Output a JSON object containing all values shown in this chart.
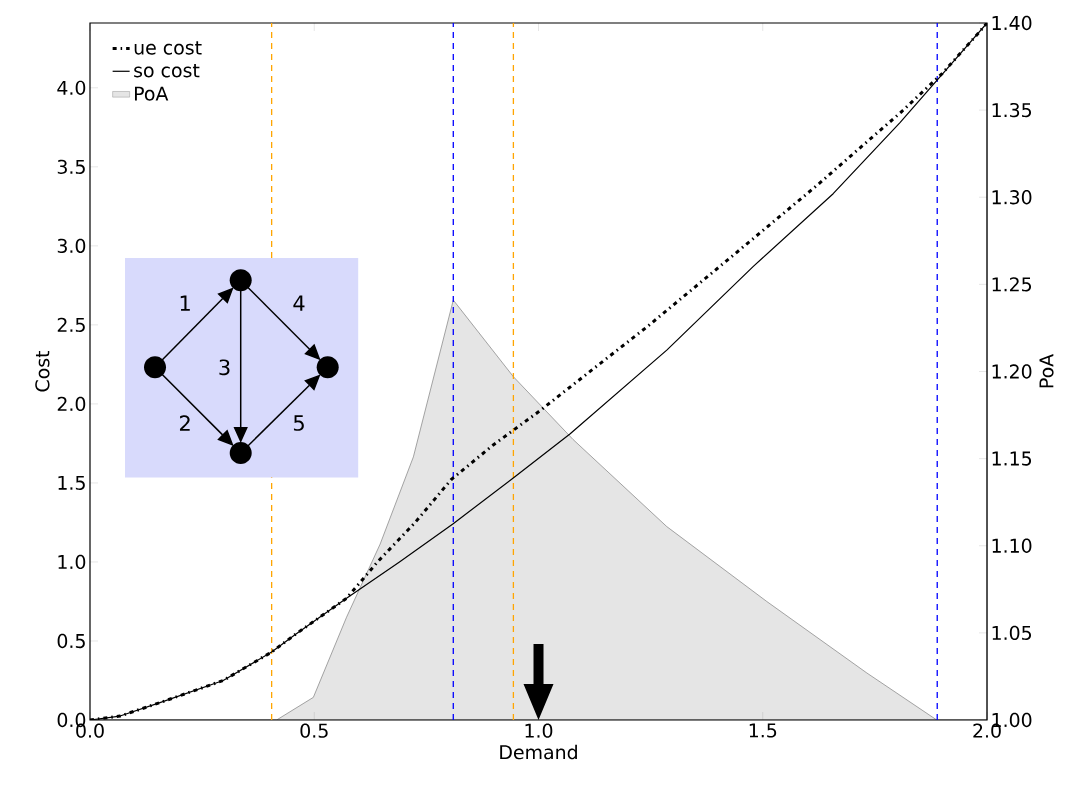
{
  "chart_data": {
    "type": "line",
    "xlabel": "Demand",
    "ylabel": "Cost",
    "y2label": "PoA",
    "xlim": [
      0,
      2
    ],
    "xticks": [
      {
        "value": 0,
        "label": "0.0"
      },
      {
        "value": 0.5,
        "label": "0.5"
      },
      {
        "value": 1,
        "label": "1.0"
      },
      {
        "value": 1.5,
        "label": "1.5"
      },
      {
        "value": 2,
        "label": "2.0"
      }
    ],
    "ylim": [
      0,
      4.41
    ],
    "yticks": [
      {
        "value": 0,
        "label": "0.0"
      },
      {
        "value": 0.5,
        "label": "0.5"
      },
      {
        "value": 1,
        "label": "1.0"
      },
      {
        "value": 1.5,
        "label": "1.5"
      },
      {
        "value": 2,
        "label": "2.0"
      },
      {
        "value": 2.5,
        "label": "2.5"
      },
      {
        "value": 3,
        "label": "3.0"
      },
      {
        "value": 3.5,
        "label": "3.5"
      },
      {
        "value": 4,
        "label": "4.0"
      }
    ],
    "y2lim": [
      1,
      1.4
    ],
    "y2ticks": [
      {
        "value": 1,
        "label": "1.00"
      },
      {
        "value": 1.05,
        "label": "1.05"
      },
      {
        "value": 1.1,
        "label": "1.10"
      },
      {
        "value": 1.15,
        "label": "1.15"
      },
      {
        "value": 1.2,
        "label": "1.20"
      },
      {
        "value": 1.25,
        "label": "1.25"
      },
      {
        "value": 1.3,
        "label": "1.30"
      },
      {
        "value": 1.35,
        "label": "1.35"
      },
      {
        "value": 1.4,
        "label": "1.40"
      }
    ],
    "series": [
      {
        "name": "ue cost",
        "line_style": "dashdot",
        "color": "#000000",
        "x": [
          0,
          0.067,
          0.156,
          0.297,
          0.405,
          0.457,
          0.572,
          0.641,
          0.725,
          0.805,
          0.899,
          1.0,
          1.243,
          1.434,
          1.624,
          1.81,
          1.9,
          1.982,
          2.0
        ],
        "values": [
          0,
          0.025,
          0.11,
          0.25,
          0.43,
          0.54,
          0.77,
          1.0,
          1.25,
          1.52,
          1.74,
          1.95,
          2.49,
          2.94,
          3.39,
          3.85,
          4.09,
          4.35,
          4.41
        ]
      },
      {
        "name": "so cost",
        "line_style": "solid",
        "color": "#000000",
        "x": [
          0,
          0.067,
          0.156,
          0.297,
          0.405,
          0.457,
          0.572,
          0.69,
          0.809,
          0.943,
          1.07,
          1.286,
          1.479,
          1.657,
          1.806,
          1.88,
          2.0
        ],
        "values": [
          0,
          0.025,
          0.11,
          0.25,
          0.43,
          0.54,
          0.77,
          1.0,
          1.24,
          1.53,
          1.81,
          2.34,
          2.87,
          3.33,
          3.78,
          4.02,
          4.41
        ]
      },
      {
        "name": "PoA",
        "type": "area",
        "axis": "y2",
        "color": "#e5e5e5",
        "x": [
          0,
          0.405,
          0.416,
          0.498,
          0.572,
          0.647,
          0.721,
          0.81,
          0.944,
          1.077,
          1.286,
          1.509,
          1.732,
          1.888,
          2.0
        ],
        "values": [
          1,
          1,
          1,
          1.013,
          1.059,
          1.101,
          1.151,
          1.241,
          1.197,
          1.161,
          1.111,
          1.068,
          1.027,
          1.0,
          1.0
        ]
      }
    ],
    "ref_lines": [
      {
        "axis": "x",
        "value": 0.405,
        "color": "#ffa500",
        "line_style": "dashed"
      },
      {
        "axis": "x",
        "value": 0.81,
        "color": "#0000ff",
        "line_style": "dashed"
      },
      {
        "axis": "x",
        "value": 0.944,
        "color": "#ffa500",
        "line_style": "dashed"
      },
      {
        "axis": "x",
        "value": 1.889,
        "color": "#0000ff",
        "line_style": "dashed"
      }
    ],
    "annotations": [
      "1",
      "2",
      "3",
      "4",
      "5"
    ],
    "legend": "top left"
  }
}
